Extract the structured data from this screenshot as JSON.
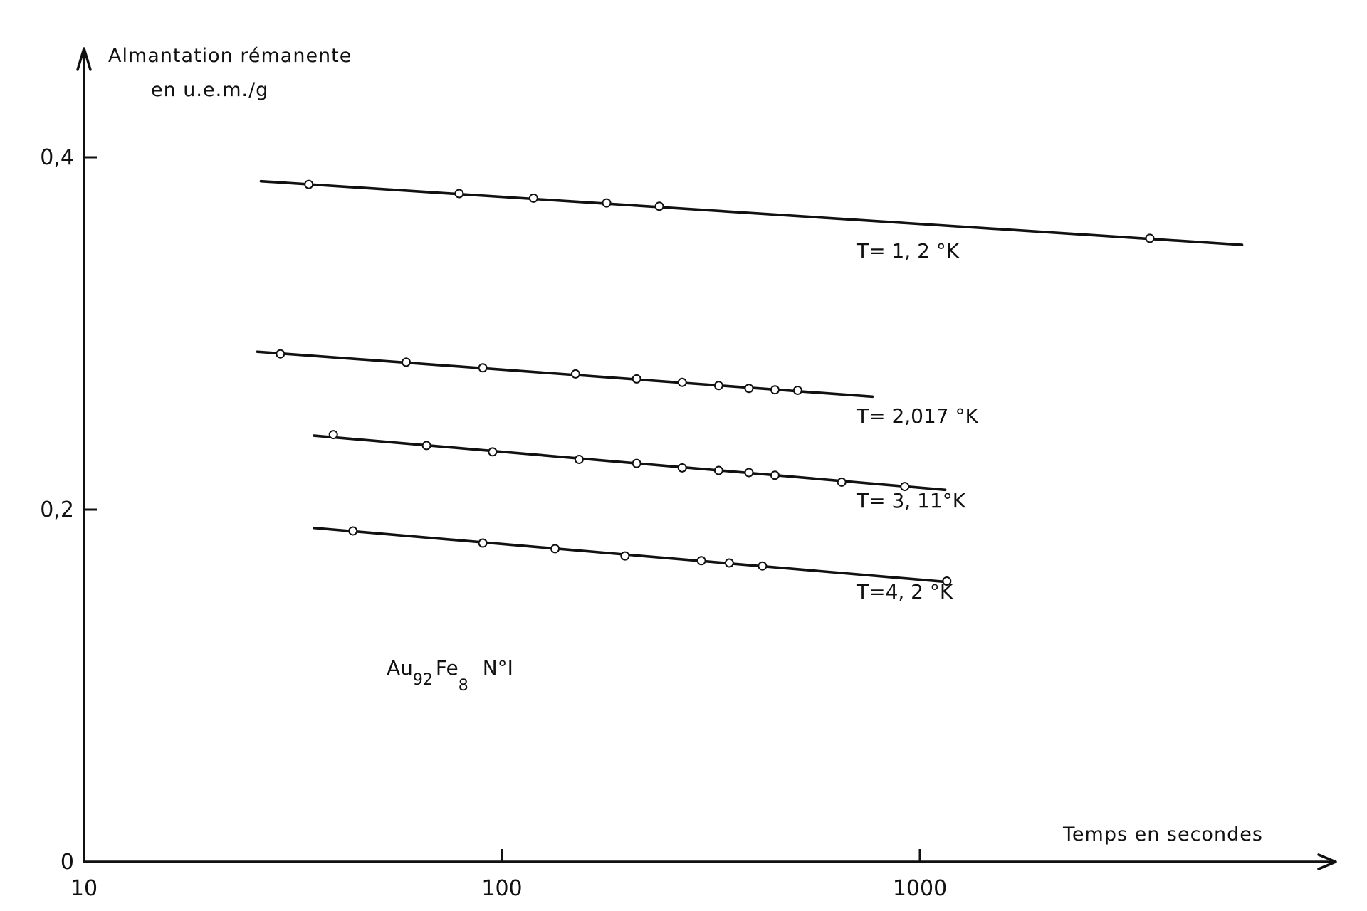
{
  "chart_data": {
    "type": "scatter",
    "x_scale": "log",
    "xlim": [
      10,
      10000
    ],
    "ylim": [
      0,
      0.46
    ],
    "ylabel": [
      "Almantation rémanente",
      "en u.e.m./g"
    ],
    "xlabel": "Temps en secondes",
    "x_ticks": [
      {
        "value": 10,
        "label": "10"
      },
      {
        "value": 100,
        "label": "100"
      },
      {
        "value": 1000,
        "label": "1000"
      }
    ],
    "y_ticks": [
      {
        "value": 0,
        "label": "0"
      },
      {
        "value": 0.2,
        "label": "0,2"
      },
      {
        "value": 0.4,
        "label": "0,4"
      }
    ],
    "annotation": {
      "base1": "Au",
      "sub1": "92",
      "base2": "Fe",
      "sub2": "8",
      "suffix": "N°I"
    },
    "series": [
      {
        "name": "T= 1, 2 °K",
        "fit": {
          "x": [
            26.5,
            5900
          ],
          "y": [
            0.3864,
            0.3503
          ]
        },
        "points": [
          {
            "x": 34.5,
            "y": 0.3846
          },
          {
            "x": 79,
            "y": 0.3794
          },
          {
            "x": 119,
            "y": 0.3768
          },
          {
            "x": 178,
            "y": 0.3741
          },
          {
            "x": 238,
            "y": 0.3722
          },
          {
            "x": 3550,
            "y": 0.354
          }
        ]
      },
      {
        "name": "T= 2,017 °K",
        "fit": {
          "x": [
            26,
            770
          ],
          "y": [
            0.2896,
            0.2641
          ]
        },
        "points": [
          {
            "x": 29.5,
            "y": 0.2884
          },
          {
            "x": 59,
            "y": 0.2837
          },
          {
            "x": 90,
            "y": 0.2805
          },
          {
            "x": 150,
            "y": 0.277
          },
          {
            "x": 210,
            "y": 0.2742
          },
          {
            "x": 270,
            "y": 0.2722
          },
          {
            "x": 330,
            "y": 0.2704
          },
          {
            "x": 390,
            "y": 0.2688
          },
          {
            "x": 450,
            "y": 0.268
          },
          {
            "x": 510,
            "y": 0.2677
          }
        ]
      },
      {
        "name": "T= 3, 11°K",
        "fit": {
          "x": [
            35.5,
            1150
          ],
          "y": [
            0.242,
            0.2112
          ]
        },
        "points": [
          {
            "x": 39.5,
            "y": 0.2426
          },
          {
            "x": 66,
            "y": 0.2364
          },
          {
            "x": 95,
            "y": 0.2328
          },
          {
            "x": 153,
            "y": 0.2285
          },
          {
            "x": 210,
            "y": 0.2262
          },
          {
            "x": 270,
            "y": 0.2237
          },
          {
            "x": 330,
            "y": 0.2222
          },
          {
            "x": 390,
            "y": 0.221
          },
          {
            "x": 450,
            "y": 0.2195
          },
          {
            "x": 650,
            "y": 0.2156
          },
          {
            "x": 920,
            "y": 0.2131
          }
        ]
      },
      {
        "name": "T=4, 2 °K",
        "fit": {
          "x": [
            35.5,
            1160
          ],
          "y": [
            0.1896,
            0.1589
          ]
        },
        "points": [
          {
            "x": 44,
            "y": 0.1879
          },
          {
            "x": 90,
            "y": 0.181
          },
          {
            "x": 134,
            "y": 0.1778
          },
          {
            "x": 197,
            "y": 0.1737
          },
          {
            "x": 300,
            "y": 0.171
          },
          {
            "x": 350,
            "y": 0.1697
          },
          {
            "x": 420,
            "y": 0.168
          },
          {
            "x": 1160,
            "y": 0.1594
          }
        ]
      }
    ],
    "legend": "inline labels below each line",
    "grid": false
  }
}
